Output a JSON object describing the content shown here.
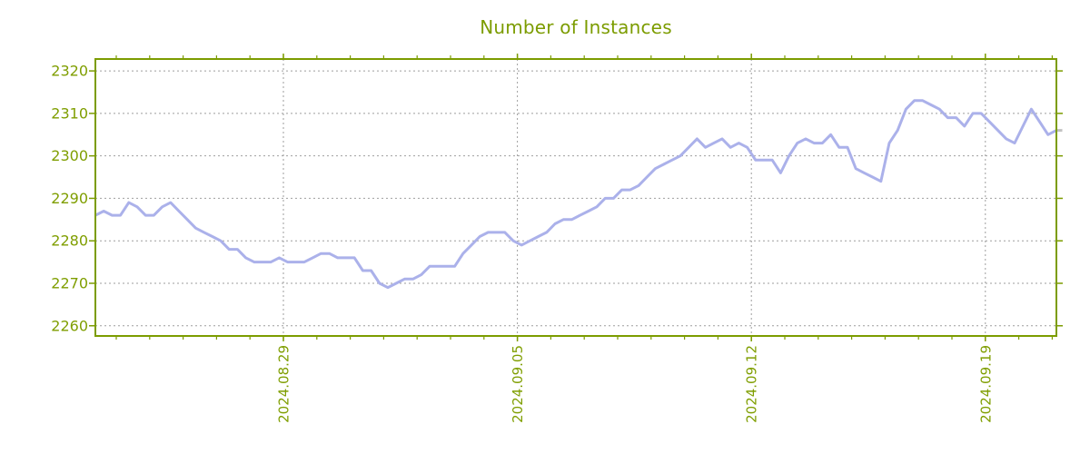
{
  "colors": {
    "axis_green": "#7c9c00",
    "label_green": "#7f9e00",
    "line_purple": "#abb1ea",
    "grid_gray": "#9e9e9e",
    "end_cap_gray": "#c2c2c2",
    "background": "#ffffff"
  },
  "chart_data": {
    "type": "line",
    "title": "Number of Instances",
    "xlabel": "",
    "ylabel": "",
    "grid": "dotted",
    "legend_position": "none",
    "y_ticks": [
      2260,
      2270,
      2280,
      2290,
      2300,
      2310,
      2320
    ],
    "ylim": [
      2257.6,
      2322.8
    ],
    "x_tick_labels": [
      "2024.08.29",
      "2024.09.05",
      "2024.09.12",
      "2024.09.19"
    ],
    "x_tick_indices": [
      22.5,
      50.5,
      78.5,
      106.5
    ],
    "minor_x_tick_first_index": 2.5,
    "minor_x_tick_step": 4,
    "points_per_day": 4,
    "end_cap_value": 2306,
    "series": [
      {
        "name": "instances",
        "values": [
          2286,
          2287,
          2286,
          2286,
          2289,
          2288,
          2286,
          2286,
          2288,
          2289,
          2287,
          2285,
          2283,
          2282,
          2281,
          2280,
          2278,
          2278,
          2276,
          2275,
          2275,
          2275,
          2276,
          2275,
          2275,
          2275,
          2276,
          2277,
          2277,
          2276,
          2276,
          2276,
          2273,
          2273,
          2270,
          2269,
          2270,
          2271,
          2271,
          2272,
          2274,
          2274,
          2274,
          2274,
          2277,
          2279,
          2281,
          2282,
          2282,
          2282,
          2280,
          2279,
          2280,
          2281,
          2282,
          2284,
          2285,
          2285,
          2286,
          2287,
          2288,
          2290,
          2290,
          2292,
          2292,
          2293,
          2295,
          2297,
          2298,
          2299,
          2300,
          2302,
          2304,
          2302,
          2303,
          2304,
          2302,
          2303,
          2302,
          2299,
          2299,
          2299,
          2296,
          2300,
          2303,
          2304,
          2303,
          2303,
          2305,
          2302,
          2302,
          2297,
          2296,
          2295,
          2294,
          2303,
          2306,
          2311,
          2313,
          2313,
          2312,
          2311,
          2309,
          2309,
          2307,
          2310,
          2310,
          2308,
          2306,
          2304,
          2303,
          2307,
          2311,
          2308,
          2305,
          2306
        ]
      }
    ]
  }
}
